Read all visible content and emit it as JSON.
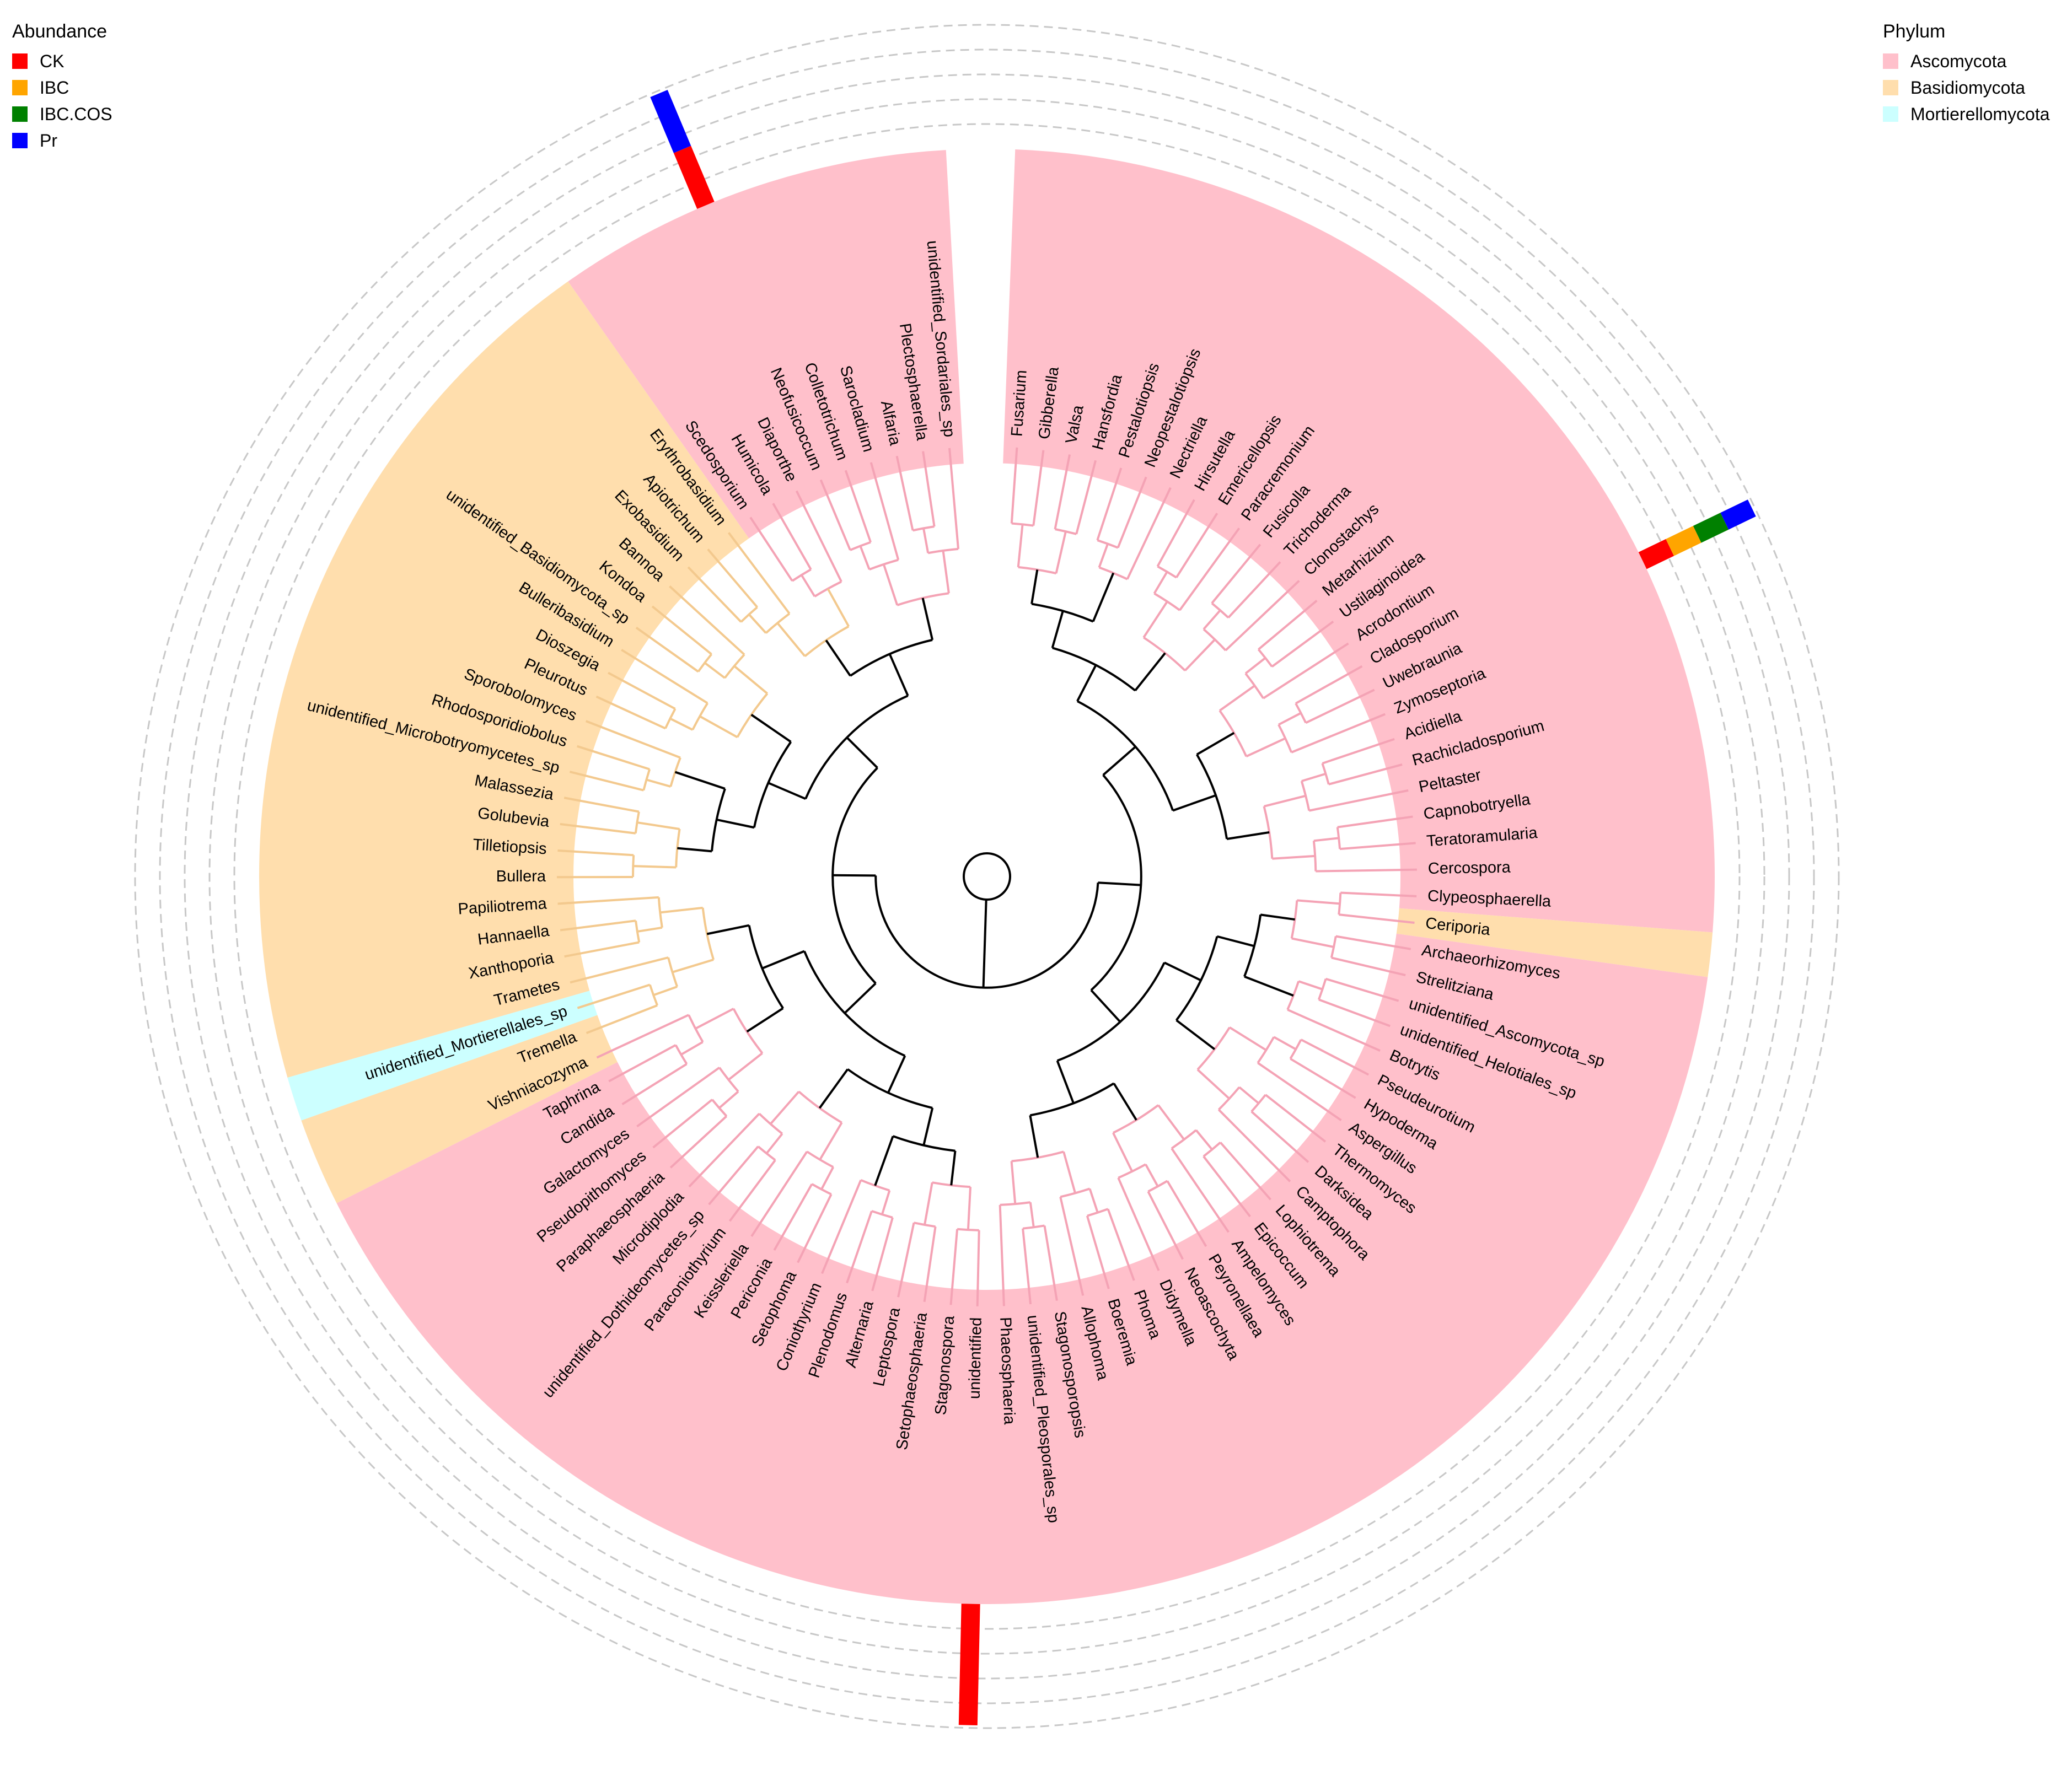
{
  "abundance_legend": {
    "title": "Abundance",
    "items": [
      {
        "label": "CK",
        "color": "#ff0000"
      },
      {
        "label": "IBC",
        "color": "#ffa500"
      },
      {
        "label": "IBC.COS",
        "color": "#008000"
      },
      {
        "label": "Pr",
        "color": "#0000ff"
      }
    ]
  },
  "phylum_legend": {
    "title": "Phylum",
    "items": [
      {
        "label": "Ascomycota",
        "color": "#ffc0cb"
      },
      {
        "label": "Basidiomycota",
        "color": "#ffdead"
      },
      {
        "label": "Mortierellomycota",
        "color": "#ccffff"
      }
    ]
  },
  "tree": {
    "type": "circular-phylogenetic-tree",
    "tips": [
      {
        "name": "Fusarium",
        "phylum": "Ascomycota"
      },
      {
        "name": "Gibberella",
        "phylum": "Ascomycota"
      },
      {
        "name": "Valsa",
        "phylum": "Ascomycota"
      },
      {
        "name": "Hansfordia",
        "phylum": "Ascomycota"
      },
      {
        "name": "Pestalotiopsis",
        "phylum": "Ascomycota"
      },
      {
        "name": "Neopestalotiopsis",
        "phylum": "Ascomycota"
      },
      {
        "name": "Nectriella",
        "phylum": "Ascomycota"
      },
      {
        "name": "Hirsutella",
        "phylum": "Ascomycota"
      },
      {
        "name": "Emericellopsis",
        "phylum": "Ascomycota"
      },
      {
        "name": "Paracremonium",
        "phylum": "Ascomycota"
      },
      {
        "name": "Fusicolla",
        "phylum": "Ascomycota"
      },
      {
        "name": "Trichoderma",
        "phylum": "Ascomycota"
      },
      {
        "name": "Clonostachys",
        "phylum": "Ascomycota"
      },
      {
        "name": "Metarhizium",
        "phylum": "Ascomycota"
      },
      {
        "name": "Ustilaginoidea",
        "phylum": "Ascomycota"
      },
      {
        "name": "Acrodontium",
        "phylum": "Ascomycota"
      },
      {
        "name": "Cladosporium",
        "phylum": "Ascomycota"
      },
      {
        "name": "Uwebraunia",
        "phylum": "Ascomycota"
      },
      {
        "name": "Zymoseptoria",
        "phylum": "Ascomycota"
      },
      {
        "name": "Acidiella",
        "phylum": "Ascomycota"
      },
      {
        "name": "Rachicladosporium",
        "phylum": "Ascomycota"
      },
      {
        "name": "Peltaster",
        "phylum": "Ascomycota"
      },
      {
        "name": "Capnobotryella",
        "phylum": "Ascomycota"
      },
      {
        "name": "Teratoramularia",
        "phylum": "Ascomycota"
      },
      {
        "name": "Cercospora",
        "phylum": "Ascomycota"
      },
      {
        "name": "Clypeosphaerella",
        "phylum": "Ascomycota"
      },
      {
        "name": "Ceriporia",
        "phylum": "Basidiomycota"
      },
      {
        "name": "Archaeorhizomyces",
        "phylum": "Ascomycota"
      },
      {
        "name": "Strelitziana",
        "phylum": "Ascomycota"
      },
      {
        "name": "unidentified_Ascomycota_sp",
        "phylum": "Ascomycota"
      },
      {
        "name": "unidentified_Helotiales_sp",
        "phylum": "Ascomycota"
      },
      {
        "name": "Botrytis",
        "phylum": "Ascomycota"
      },
      {
        "name": "Pseudeurotium",
        "phylum": "Ascomycota"
      },
      {
        "name": "Hypoderma",
        "phylum": "Ascomycota"
      },
      {
        "name": "Aspergillus",
        "phylum": "Ascomycota"
      },
      {
        "name": "Thermomyces",
        "phylum": "Ascomycota"
      },
      {
        "name": "Darksidea",
        "phylum": "Ascomycota"
      },
      {
        "name": "Camptophora",
        "phylum": "Ascomycota"
      },
      {
        "name": "Lophiotrema",
        "phylum": "Ascomycota"
      },
      {
        "name": "Epicoccum",
        "phylum": "Ascomycota"
      },
      {
        "name": "Ampelomyces",
        "phylum": "Ascomycota"
      },
      {
        "name": "Peyronellaea",
        "phylum": "Ascomycota"
      },
      {
        "name": "Neoascochyta",
        "phylum": "Ascomycota"
      },
      {
        "name": "Didymella",
        "phylum": "Ascomycota"
      },
      {
        "name": "Phoma",
        "phylum": "Ascomycota"
      },
      {
        "name": "Boeremia",
        "phylum": "Ascomycota"
      },
      {
        "name": "Allophoma",
        "phylum": "Ascomycota"
      },
      {
        "name": "Stagonosporopsis",
        "phylum": "Ascomycota"
      },
      {
        "name": "unidentified_Pleosporales_sp",
        "phylum": "Ascomycota"
      },
      {
        "name": "Phaeosphaeria",
        "phylum": "Ascomycota"
      },
      {
        "name": "unidentified",
        "phylum": "Ascomycota"
      },
      {
        "name": "Stagonospora",
        "phylum": "Ascomycota"
      },
      {
        "name": "Setophaeosphaeria",
        "phylum": "Ascomycota"
      },
      {
        "name": "Leptospora",
        "phylum": "Ascomycota"
      },
      {
        "name": "Alternaria",
        "phylum": "Ascomycota"
      },
      {
        "name": "Plenodomus",
        "phylum": "Ascomycota"
      },
      {
        "name": "Coniothyrium",
        "phylum": "Ascomycota"
      },
      {
        "name": "Setophoma",
        "phylum": "Ascomycota"
      },
      {
        "name": "Periconia",
        "phylum": "Ascomycota"
      },
      {
        "name": "Keissleriella",
        "phylum": "Ascomycota"
      },
      {
        "name": "Paraconiothyrium",
        "phylum": "Ascomycota"
      },
      {
        "name": "unidentified_Dothideomycetes_sp",
        "phylum": "Ascomycota"
      },
      {
        "name": "Microdiplodia",
        "phylum": "Ascomycota"
      },
      {
        "name": "Paraphaeosphaeria",
        "phylum": "Ascomycota"
      },
      {
        "name": "Pseudopithomyces",
        "phylum": "Ascomycota"
      },
      {
        "name": "Galactomyces",
        "phylum": "Ascomycota"
      },
      {
        "name": "Candida",
        "phylum": "Ascomycota"
      },
      {
        "name": "Taphrina",
        "phylum": "Ascomycota"
      },
      {
        "name": "Vishniacozyma",
        "phylum": "Basidiomycota"
      },
      {
        "name": "Tremella",
        "phylum": "Basidiomycota"
      },
      {
        "name": "unidentified_Mortierellales_sp",
        "phylum": "Mortierellomycota"
      },
      {
        "name": "Trametes",
        "phylum": "Basidiomycota"
      },
      {
        "name": "Xanthoporia",
        "phylum": "Basidiomycota"
      },
      {
        "name": "Hannaella",
        "phylum": "Basidiomycota"
      },
      {
        "name": "Papiliotrema",
        "phylum": "Basidiomycota"
      },
      {
        "name": "Bullera",
        "phylum": "Basidiomycota"
      },
      {
        "name": "Tilletiopsis",
        "phylum": "Basidiomycota"
      },
      {
        "name": "Golubevia",
        "phylum": "Basidiomycota"
      },
      {
        "name": "Malassezia",
        "phylum": "Basidiomycota"
      },
      {
        "name": "unidentified_Microbotryomycetes_sp",
        "phylum": "Basidiomycota"
      },
      {
        "name": "Rhodosporidiobolus",
        "phylum": "Basidiomycota"
      },
      {
        "name": "Sporobolomyces",
        "phylum": "Basidiomycota"
      },
      {
        "name": "Pleurotus",
        "phylum": "Basidiomycota"
      },
      {
        "name": "Dioszegia",
        "phylum": "Basidiomycota"
      },
      {
        "name": "Bulleribasidium",
        "phylum": "Basidiomycota"
      },
      {
        "name": "unidentified_Basidiomycota_sp",
        "phylum": "Basidiomycota"
      },
      {
        "name": "Kondoa",
        "phylum": "Basidiomycota"
      },
      {
        "name": "Bannoa",
        "phylum": "Basidiomycota"
      },
      {
        "name": "Exobasidium",
        "phylum": "Basidiomycota"
      },
      {
        "name": "Apiotrichum",
        "phylum": "Basidiomycota"
      },
      {
        "name": "Erythrobasidium",
        "phylum": "Basidiomycota"
      },
      {
        "name": "Scedosporium",
        "phylum": "Ascomycota"
      },
      {
        "name": "Humicola",
        "phylum": "Ascomycota"
      },
      {
        "name": "Diaporthe",
        "phylum": "Ascomycota"
      },
      {
        "name": "Neofusicoccum",
        "phylum": "Ascomycota"
      },
      {
        "name": "Colletotrichum",
        "phylum": "Ascomycota"
      },
      {
        "name": "Sarocladium",
        "phylum": "Ascomycota"
      },
      {
        "name": "Alfaria",
        "phylum": "Ascomycota"
      },
      {
        "name": "Plectosphaerella",
        "phylum": "Ascomycota"
      },
      {
        "name": "unidentified_Sordariales_sp",
        "phylum": "Ascomycota"
      }
    ],
    "abundance_bars": [
      {
        "tip": "Uwebraunia",
        "CK": 0.25,
        "IBC": 0.25,
        "IBC.COS": 0.25,
        "Pr": 0.25
      },
      {
        "tip": "Neofusicoccum",
        "CK": 0.5,
        "IBC": 0,
        "IBC.COS": 0,
        "Pr": 0.5
      },
      {
        "tip": "unidentified",
        "CK": 1,
        "IBC": 0,
        "IBC.COS": 0,
        "Pr": 0
      }
    ]
  }
}
